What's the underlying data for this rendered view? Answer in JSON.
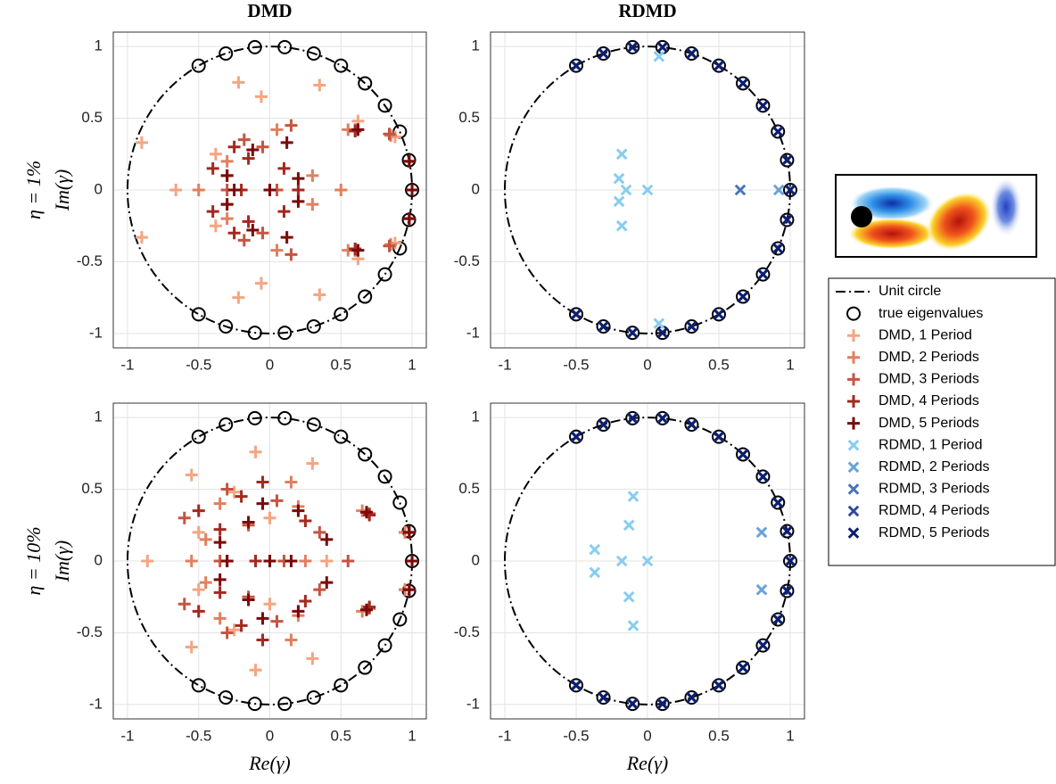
{
  "chart_data": [
    {
      "type": "scatter",
      "title": "DMD",
      "ylabel": "Im(γ)",
      "row_label": "η = 1%",
      "legend": "right",
      "xlim": [
        -1.1,
        1.1
      ],
      "ylim": [
        -1.1,
        1.1
      ],
      "xticks": [
        -1,
        -0.5,
        0,
        0.5,
        1
      ],
      "yticks": [
        -1,
        -0.5,
        0,
        0.5,
        1
      ],
      "grid": true,
      "series": [
        {
          "name": "Unit circle",
          "color": "#000000",
          "marker": "dash-dot",
          "radius": 1
        },
        {
          "name": "true eigenvalues",
          "color": "#000000",
          "marker": "o",
          "x": [
            1,
            0.978,
            0.914,
            0.809,
            0.669,
            0.5,
            0.309,
            0.105,
            -0.105,
            -0.309,
            -0.5,
            0.978,
            0.914,
            0.809,
            0.669,
            0.5,
            0.309,
            0.105,
            -0.105,
            -0.309,
            -0.5
          ],
          "y": [
            0,
            0.208,
            0.407,
            0.588,
            0.743,
            0.866,
            0.951,
            0.995,
            0.995,
            0.951,
            0.866,
            -0.208,
            -0.407,
            -0.588,
            -0.743,
            -0.866,
            -0.951,
            -0.995,
            -0.995,
            -0.951,
            -0.866
          ]
        },
        {
          "name": "DMD, 1 Period",
          "color": "#f4a582",
          "marker": "+",
          "x": [
            -0.22,
            -0.06,
            0.35,
            -0.9,
            -0.38,
            0.62,
            0.88,
            -0.22,
            -0.06,
            0.35,
            -0.9,
            -0.38,
            0.62,
            0.88,
            -0.66
          ],
          "y": [
            0.75,
            0.65,
            0.73,
            0.33,
            0.25,
            0.48,
            0.37,
            -0.75,
            -0.65,
            -0.73,
            -0.33,
            -0.25,
            -0.48,
            -0.37,
            0
          ]
        },
        {
          "name": "DMD, 2 Periods",
          "color": "#e0805f",
          "marker": "+",
          "x": [
            -0.3,
            0.05,
            0.55,
            0.85,
            0.3,
            -0.3,
            0.05,
            0.55,
            0.85,
            0.3,
            -0.5,
            0.5
          ],
          "y": [
            0.2,
            0.42,
            0.42,
            0.38,
            0.1,
            -0.2,
            -0.42,
            -0.42,
            -0.38,
            -0.1,
            0,
            0
          ]
        },
        {
          "name": "DMD, 3 Periods",
          "color": "#c45541",
          "marker": "+",
          "x": [
            -0.18,
            -0.05,
            0.15,
            0.6,
            0.84,
            -0.3,
            -0.18,
            -0.05,
            0.15,
            0.6,
            0.84,
            -0.3,
            -0.3,
            0.05
          ],
          "y": [
            0.35,
            0.3,
            0.45,
            0.42,
            0.39,
            0.1,
            -0.35,
            -0.3,
            -0.45,
            -0.42,
            -0.39,
            -0.1,
            0,
            0
          ]
        },
        {
          "name": "DMD, 4 Periods",
          "color": "#a3291f",
          "marker": "+",
          "x": [
            -0.15,
            0.1,
            -0.25,
            0.6,
            0.98,
            -0.4,
            -0.15,
            0.1,
            -0.25,
            0.6,
            0.98,
            -0.4,
            -0.2,
            0.2
          ],
          "y": [
            0.22,
            0.15,
            0.3,
            0.41,
            0.2,
            0.15,
            -0.22,
            -0.15,
            -0.3,
            -0.41,
            -0.2,
            -0.15,
            0,
            0
          ]
        },
        {
          "name": "DMD, 5 Periods",
          "color": "#7a0a0a",
          "marker": "+",
          "x": [
            -0.12,
            0.12,
            -0.3,
            0.62,
            0.98,
            0.2,
            -0.12,
            0.12,
            -0.3,
            0.62,
            0.98,
            0.2,
            -0.25,
            0,
            1
          ],
          "y": [
            0.28,
            0.33,
            0.1,
            0.42,
            0.2,
            0.08,
            -0.28,
            -0.33,
            -0.1,
            -0.42,
            -0.2,
            -0.08,
            0,
            0,
            0
          ]
        }
      ]
    },
    {
      "type": "scatter",
      "title": "RDMD",
      "xlim": [
        -1.1,
        1.1
      ],
      "ylim": [
        -1.1,
        1.1
      ],
      "xticks": [
        -1,
        -0.5,
        0,
        0.5,
        1
      ],
      "yticks": [
        -1,
        -0.5,
        0,
        0.5,
        1
      ],
      "grid": true,
      "series": [
        {
          "name": "Unit circle",
          "color": "#000000",
          "marker": "dash-dot",
          "radius": 1
        },
        {
          "name": "true eigenvalues",
          "color": "#000000",
          "marker": "o",
          "x": [
            1,
            0.978,
            0.914,
            0.809,
            0.669,
            0.5,
            0.309,
            0.105,
            -0.105,
            -0.309,
            -0.5,
            0.978,
            0.914,
            0.809,
            0.669,
            0.5,
            0.309,
            0.105,
            -0.105,
            -0.309,
            -0.5
          ],
          "y": [
            0,
            0.208,
            0.407,
            0.588,
            0.743,
            0.866,
            0.951,
            0.995,
            0.995,
            0.951,
            0.866,
            -0.208,
            -0.407,
            -0.588,
            -0.743,
            -0.866,
            -0.951,
            -0.995,
            -0.995,
            -0.951,
            -0.866
          ]
        },
        {
          "name": "RDMD, 1 Period",
          "color": "#87cdf0",
          "marker": "x",
          "x": [
            0.08,
            0.08,
            -0.18,
            -0.2,
            -0.2,
            -0.18,
            -0.15,
            0
          ],
          "y": [
            0.93,
            -0.93,
            0.25,
            0.08,
            -0.08,
            -0.25,
            0,
            0
          ]
        },
        {
          "name": "RDMD, 2 Periods",
          "color": "#6aa2da",
          "marker": "x",
          "x": [
            0.92
          ],
          "y": [
            0
          ]
        },
        {
          "name": "RDMD, 3 Periods",
          "color": "#4a74b8",
          "marker": "x",
          "x": [
            0.65
          ],
          "y": [
            0
          ]
        },
        {
          "name": "RDMD, 4 Periods",
          "color": "#2d4a9b",
          "marker": "x",
          "x": [
            1,
            0.978,
            0.914,
            0.809,
            0.669,
            0.5,
            0.309,
            0.105,
            -0.105,
            -0.309,
            -0.5,
            0.978,
            0.914,
            0.809,
            0.669,
            0.5,
            0.309,
            0.105,
            -0.105,
            -0.309,
            -0.5
          ],
          "y": [
            0,
            0.208,
            0.407,
            0.588,
            0.743,
            0.866,
            0.951,
            0.995,
            0.995,
            0.951,
            0.866,
            -0.208,
            -0.407,
            -0.588,
            -0.743,
            -0.866,
            -0.951,
            -0.995,
            -0.995,
            -0.951,
            -0.866
          ]
        },
        {
          "name": "RDMD, 5 Periods",
          "color": "#0d1f6e",
          "marker": "x",
          "x": [
            1,
            0.978,
            0.914,
            0.809,
            0.669,
            0.5,
            0.309,
            0.105,
            -0.105,
            -0.309,
            -0.5,
            0.978,
            0.914,
            0.809,
            0.669,
            0.5,
            0.309,
            0.105,
            -0.105,
            -0.309,
            -0.5
          ],
          "y": [
            0,
            0.208,
            0.407,
            0.588,
            0.743,
            0.866,
            0.951,
            0.995,
            0.995,
            0.951,
            0.866,
            -0.208,
            -0.407,
            -0.588,
            -0.743,
            -0.866,
            -0.951,
            -0.995,
            -0.995,
            -0.951,
            -0.866
          ]
        }
      ]
    },
    {
      "type": "scatter",
      "xlabel": "Re(γ)",
      "ylabel": "Im(γ)",
      "row_label": "η = 10%",
      "xlim": [
        -1.1,
        1.1
      ],
      "ylim": [
        -1.1,
        1.1
      ],
      "xticks": [
        -1,
        -0.5,
        0,
        0.5,
        1
      ],
      "yticks": [
        -1,
        -0.5,
        0,
        0.5,
        1
      ],
      "grid": true,
      "series": [
        {
          "name": "Unit circle",
          "color": "#000000",
          "marker": "dash-dot",
          "radius": 1
        },
        {
          "name": "true eigenvalues",
          "color": "#000000",
          "marker": "o",
          "x": [
            1,
            0.978,
            0.914,
            0.809,
            0.669,
            0.5,
            0.309,
            0.105,
            -0.105,
            -0.309,
            -0.5,
            0.978,
            0.914,
            0.809,
            0.669,
            0.5,
            0.309,
            0.105,
            -0.105,
            -0.309,
            -0.5
          ],
          "y": [
            0,
            0.208,
            0.407,
            0.588,
            0.743,
            0.866,
            0.951,
            0.995,
            0.995,
            0.951,
            0.866,
            -0.208,
            -0.407,
            -0.588,
            -0.743,
            -0.866,
            -0.951,
            -0.995,
            -0.995,
            -0.951,
            -0.866
          ]
        },
        {
          "name": "DMD, 1 Period",
          "color": "#f4a582",
          "marker": "+",
          "x": [
            -0.55,
            -0.1,
            0.3,
            -0.5,
            0.95,
            -0.25,
            0,
            -0.55,
            -0.1,
            0.3,
            -0.5,
            0.95,
            -0.25,
            0,
            -0.86,
            0.4
          ],
          "y": [
            0.6,
            0.76,
            0.68,
            0.2,
            0.2,
            0.48,
            0.3,
            -0.6,
            -0.76,
            -0.68,
            -0.2,
            -0.2,
            -0.48,
            -0.3,
            0,
            0
          ]
        },
        {
          "name": "DMD, 2 Periods",
          "color": "#e0805f",
          "marker": "+",
          "x": [
            -0.35,
            0.2,
            0.65,
            -0.45,
            0.15,
            0.95,
            -0.35,
            0.2,
            0.65,
            -0.45,
            0.15,
            0.95,
            -0.55,
            0.25
          ],
          "y": [
            0.4,
            0.38,
            0.35,
            0.15,
            0.55,
            0.2,
            -0.4,
            -0.38,
            -0.35,
            -0.15,
            -0.55,
            -0.2,
            0,
            0
          ]
        },
        {
          "name": "DMD, 3 Periods",
          "color": "#c45541",
          "marker": "+",
          "x": [
            -0.3,
            0.05,
            0.7,
            -0.15,
            0.35,
            -0.6,
            -0.3,
            0.05,
            0.7,
            -0.15,
            0.35,
            -0.6,
            -0.35,
            0.1,
            0.55
          ],
          "y": [
            0.5,
            0.42,
            0.33,
            0.25,
            0.2,
            0.3,
            -0.5,
            -0.42,
            -0.33,
            -0.25,
            -0.2,
            -0.3,
            0,
            0,
            0
          ]
        },
        {
          "name": "DMD, 4 Periods",
          "color": "#a3291f",
          "marker": "+",
          "x": [
            -0.2,
            -0.05,
            0.7,
            -0.35,
            0.25,
            0.98,
            -0.5,
            -0.2,
            -0.05,
            0.7,
            -0.35,
            0.25,
            0.98,
            -0.5,
            -0.3,
            -0.1,
            1
          ],
          "y": [
            0.45,
            0.55,
            0.32,
            0.22,
            0.28,
            0.2,
            0.35,
            -0.45,
            -0.55,
            -0.32,
            -0.22,
            -0.28,
            -0.2,
            -0.35,
            0,
            0,
            0
          ]
        },
        {
          "name": "DMD, 5 Periods",
          "color": "#7a0a0a",
          "marker": "+",
          "x": [
            -0.35,
            -0.15,
            0.2,
            0.68,
            0.4,
            0.98,
            -0.05,
            -0.35,
            -0.15,
            0.2,
            0.68,
            0.4,
            0.98,
            -0.05,
            -0.3,
            0,
            0.15,
            1
          ],
          "y": [
            0.13,
            0.27,
            0.35,
            0.34,
            0.15,
            0.2,
            0.4,
            -0.13,
            -0.27,
            -0.35,
            -0.34,
            -0.15,
            -0.2,
            -0.4,
            0,
            0,
            0,
            0
          ]
        }
      ]
    },
    {
      "type": "scatter",
      "xlabel": "Re(γ)",
      "xlim": [
        -1.1,
        1.1
      ],
      "ylim": [
        -1.1,
        1.1
      ],
      "xticks": [
        -1,
        -0.5,
        0,
        0.5,
        1
      ],
      "yticks": [
        -1,
        -0.5,
        0,
        0.5,
        1
      ],
      "grid": true,
      "series": [
        {
          "name": "Unit circle",
          "color": "#000000",
          "marker": "dash-dot",
          "radius": 1
        },
        {
          "name": "true eigenvalues",
          "color": "#000000",
          "marker": "o",
          "x": [
            1,
            0.978,
            0.914,
            0.809,
            0.669,
            0.5,
            0.309,
            0.105,
            -0.105,
            -0.309,
            -0.5,
            0.978,
            0.914,
            0.809,
            0.669,
            0.5,
            0.309,
            0.105,
            -0.105,
            -0.309,
            -0.5
          ],
          "y": [
            0,
            0.208,
            0.407,
            0.588,
            0.743,
            0.866,
            0.951,
            0.995,
            0.995,
            0.951,
            0.866,
            -0.208,
            -0.407,
            -0.588,
            -0.743,
            -0.866,
            -0.951,
            -0.995,
            -0.995,
            -0.951,
            -0.866
          ]
        },
        {
          "name": "RDMD, 1 Period",
          "color": "#87cdf0",
          "marker": "x",
          "x": [
            -0.1,
            -0.13,
            -0.37,
            -0.37,
            -0.18,
            0,
            -0.13,
            -0.1
          ],
          "y": [
            0.45,
            0.25,
            0.08,
            -0.08,
            0,
            0,
            -0.25,
            -0.45
          ]
        },
        {
          "name": "RDMD, 2 Periods",
          "color": "#6aa2da",
          "marker": "x",
          "x": [
            0.8,
            0.8
          ],
          "y": [
            0.2,
            -0.2
          ]
        },
        {
          "name": "RDMD, 3 Periods",
          "color": "#4a74b8",
          "marker": "x",
          "x": [
            1,
            0.978,
            0.914,
            0.809,
            0.669,
            0.5,
            0.309,
            0.105,
            -0.105,
            -0.309,
            -0.5,
            0.978,
            0.914,
            0.809,
            0.669,
            0.5,
            0.309,
            0.105,
            -0.105,
            -0.309,
            -0.5
          ],
          "y": [
            0,
            0.208,
            0.407,
            0.588,
            0.743,
            0.866,
            0.951,
            0.995,
            0.995,
            0.951,
            0.866,
            -0.208,
            -0.407,
            -0.588,
            -0.743,
            -0.866,
            -0.951,
            -0.995,
            -0.995,
            -0.951,
            -0.866
          ]
        },
        {
          "name": "RDMD, 4 Periods",
          "color": "#2d4a9b",
          "marker": "x",
          "x": [
            1,
            0.978,
            0.914,
            0.809,
            0.669,
            0.5,
            0.309,
            0.105,
            -0.105,
            -0.309,
            -0.5,
            0.978,
            0.914,
            0.809,
            0.669,
            0.5,
            0.309,
            0.105,
            -0.105,
            -0.309,
            -0.5
          ],
          "y": [
            0,
            0.208,
            0.407,
            0.588,
            0.743,
            0.866,
            0.951,
            0.995,
            0.995,
            0.951,
            0.866,
            -0.208,
            -0.407,
            -0.588,
            -0.743,
            -0.866,
            -0.951,
            -0.995,
            -0.995,
            -0.951,
            -0.866
          ]
        },
        {
          "name": "RDMD, 5 Periods",
          "color": "#0d1f6e",
          "marker": "x",
          "x": [
            1,
            0.978,
            0.914,
            0.809,
            0.669,
            0.5,
            0.309,
            0.105,
            -0.105,
            -0.309,
            -0.5,
            0.978,
            0.914,
            0.809,
            0.669,
            0.5,
            0.309,
            0.105,
            -0.105,
            -0.309,
            -0.5
          ],
          "y": [
            0,
            0.208,
            0.407,
            0.588,
            0.743,
            0.866,
            0.951,
            0.995,
            0.995,
            0.951,
            0.866,
            -0.208,
            -0.407,
            -0.588,
            -0.743,
            -0.866,
            -0.951,
            -0.995,
            -0.995,
            -0.951,
            -0.866
          ]
        }
      ]
    }
  ]
}
